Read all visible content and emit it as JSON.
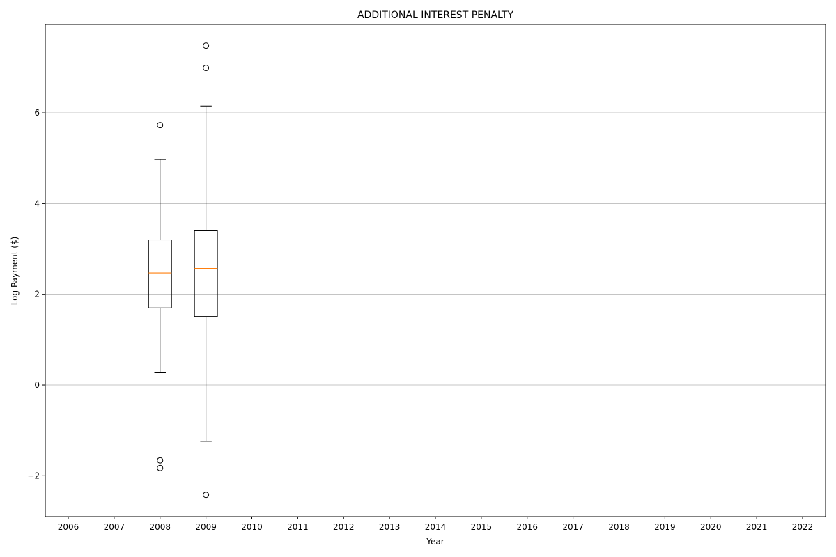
{
  "chart_data": {
    "type": "boxplot",
    "title": "ADDITIONAL INTEREST PENALTY",
    "xlabel": "Year",
    "ylabel": "Log Payment ($)",
    "categories": [
      "2006",
      "2007",
      "2008",
      "2009",
      "2010",
      "2011",
      "2012",
      "2013",
      "2014",
      "2015",
      "2016",
      "2017",
      "2018",
      "2019",
      "2020",
      "2021",
      "2022"
    ],
    "yticks": [
      -2,
      0,
      2,
      4,
      6
    ],
    "ylim": [
      -2.9,
      7.95
    ],
    "grid": "y",
    "boxes": [
      {
        "category": "2008",
        "whisker_low": 0.27,
        "q1": 1.7,
        "median": 2.47,
        "q3": 3.2,
        "whisker_high": 4.97,
        "outliers": [
          5.73,
          -1.66,
          -1.83
        ]
      },
      {
        "category": "2009",
        "whisker_low": -1.24,
        "q1": 1.51,
        "median": 2.57,
        "q3": 3.4,
        "whisker_high": 6.15,
        "outliers": [
          7.48,
          6.99,
          -2.42
        ]
      }
    ],
    "colors": {
      "box": "#000000",
      "median": "#ff7f0e",
      "grid": "#b0b0b0"
    }
  }
}
